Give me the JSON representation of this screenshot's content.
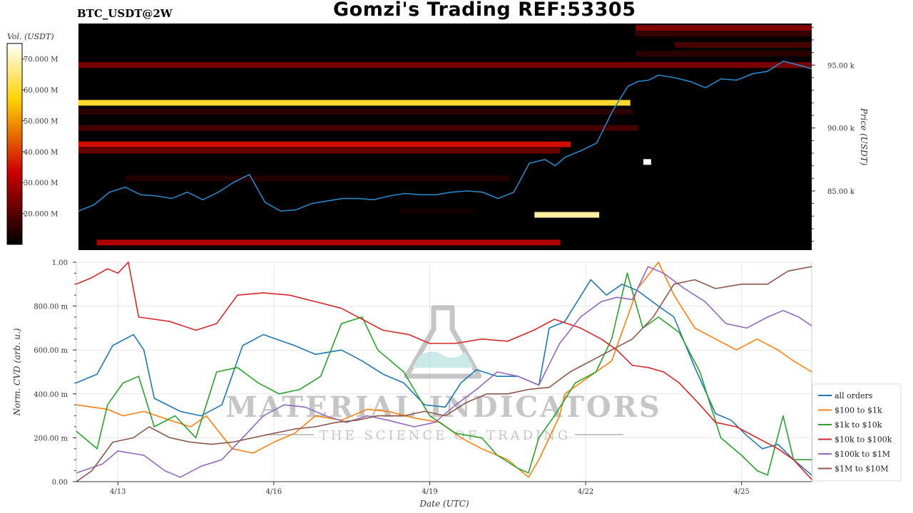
{
  "header": {
    "title": "Gomzi's Trading REF:53305",
    "symbol": "BTC_USDT@2W"
  },
  "watermark": {
    "brand": "MATERIAL INDICATORS",
    "tagline": "THE SCIENCE OF TRADING"
  },
  "chart_data": [
    {
      "type": "heatmap",
      "colorbar": {
        "label": "Vol. (USDT)",
        "range": [
          10,
          75
        ],
        "ticks": [
          "70.000 M",
          "60.000 M",
          "50.000 M",
          "40.000 M",
          "30.000 M",
          "20.000 M"
        ],
        "tick_values": [
          70,
          60,
          50,
          40,
          30,
          20
        ],
        "colormap": "hot"
      },
      "ylabel": "Price (USDT)",
      "ylim": [
        80300,
        98300
      ],
      "y_ticks": [
        "95.00 k",
        "90.00 k",
        "85.00 k"
      ],
      "y_tick_values": [
        95000,
        90000,
        85000
      ],
      "days_range": [
        -0.3,
        13.85
      ],
      "levels": [
        {
          "price": 97950,
          "from": 10.45,
          "to": 13.85,
          "vol": 25
        },
        {
          "price": 97500,
          "from": 10.45,
          "to": 13.85,
          "vol": 16
        },
        {
          "price": 96600,
          "from": 11.2,
          "to": 13.85,
          "vol": 18
        },
        {
          "price": 95900,
          "from": 10.45,
          "to": 13.85,
          "vol": 15
        },
        {
          "price": 95000,
          "from": -0.3,
          "to": 13.85,
          "vol": 24
        },
        {
          "price": 92000,
          "from": -0.3,
          "to": 10.35,
          "vol": 60
        },
        {
          "price": 91300,
          "from": -0.3,
          "to": 10.4,
          "vol": 15
        },
        {
          "price": 90000,
          "from": -0.3,
          "to": 10.5,
          "vol": 18
        },
        {
          "price": 88700,
          "from": -0.3,
          "to": 9.2,
          "vol": 35
        },
        {
          "price": 88200,
          "from": -0.3,
          "to": 9.0,
          "vol": 22
        },
        {
          "price": 87300,
          "from": 10.6,
          "to": 10.75,
          "vol": 95
        },
        {
          "price": 86000,
          "from": 0.6,
          "to": 8.0,
          "vol": 14
        },
        {
          "price": 83400,
          "from": 5.9,
          "to": 7.35,
          "vol": 12
        },
        {
          "price": 83100,
          "from": 8.5,
          "to": 9.75,
          "vol": 68
        },
        {
          "price": 80900,
          "from": 0.05,
          "to": 9.0,
          "vol": 30
        }
      ],
      "price_series": {
        "name": "price",
        "days": [
          -0.3,
          0.0,
          0.3,
          0.6,
          0.9,
          1.2,
          1.5,
          1.8,
          2.1,
          2.4,
          2.7,
          3.0,
          3.3,
          3.6,
          3.9,
          4.2,
          4.5,
          4.8,
          5.1,
          5.4,
          5.7,
          6.0,
          6.3,
          6.6,
          6.9,
          7.2,
          7.5,
          7.8,
          8.1,
          8.4,
          8.7,
          8.9,
          9.1,
          9.4,
          9.7,
          10.0,
          10.3,
          10.5,
          10.7,
          10.9,
          11.2,
          11.5,
          11.8,
          12.1,
          12.4,
          12.7,
          13.0,
          13.3,
          13.6,
          13.85
        ],
        "values": [
          83400,
          83900,
          84900,
          85300,
          84700,
          84600,
          84400,
          84900,
          84300,
          84900,
          85700,
          86300,
          84100,
          83400,
          83500,
          84000,
          84200,
          84400,
          84400,
          84300,
          84600,
          84800,
          84700,
          84700,
          84900,
          85000,
          84900,
          84400,
          84900,
          87200,
          87500,
          87000,
          87700,
          88200,
          88800,
          91300,
          93300,
          93700,
          93800,
          94200,
          94000,
          93700,
          93200,
          93900,
          93800,
          94300,
          94500,
          95300,
          95000,
          94700
        ]
      }
    },
    {
      "type": "line",
      "xlabel": "Date (UTC)",
      "ylabel": "Norm. CVD (arb. u.)",
      "ylim": [
        0,
        1
      ],
      "xlim": [
        -0.3,
        13.85
      ],
      "y_ticks": [
        "1.00",
        "800.00 m",
        "600.00 m",
        "400.00 m",
        "200.00 m",
        "0.00"
      ],
      "y_tick_values": [
        1.0,
        0.8,
        0.6,
        0.4,
        0.2,
        0.0
      ],
      "x_ticks": [
        "4/13",
        "4/16",
        "4/19",
        "4/22",
        "4/25"
      ],
      "x_tick_days": [
        0.5,
        3.5,
        6.5,
        9.5,
        12.5
      ],
      "legend_position": "bottom-right",
      "series": [
        {
          "name": "all orders",
          "color": "#1f77b4",
          "x": [
            -0.3,
            0.1,
            0.4,
            0.8,
            1.0,
            1.2,
            1.7,
            2.1,
            2.5,
            2.9,
            3.3,
            3.9,
            4.3,
            4.8,
            5.2,
            5.6,
            6.0,
            6.4,
            6.8,
            7.1,
            7.4,
            7.8,
            8.2,
            8.6,
            8.8,
            9.1,
            9.6,
            9.9,
            10.2,
            10.5,
            10.9,
            11.2,
            11.6,
            12.0,
            12.3,
            12.6,
            12.9,
            13.2,
            13.5,
            13.85
          ],
          "y": [
            0.45,
            0.49,
            0.62,
            0.67,
            0.6,
            0.38,
            0.32,
            0.3,
            0.35,
            0.62,
            0.67,
            0.62,
            0.58,
            0.6,
            0.55,
            0.49,
            0.45,
            0.35,
            0.34,
            0.45,
            0.51,
            0.48,
            0.48,
            0.44,
            0.7,
            0.73,
            0.92,
            0.85,
            0.9,
            0.87,
            0.8,
            0.75,
            0.52,
            0.31,
            0.28,
            0.21,
            0.15,
            0.17,
            0.1,
            0.03
          ]
        },
        {
          "name": "$100 to $1k",
          "color": "#ff7f0e",
          "x": [
            -0.3,
            0.3,
            0.6,
            1.0,
            1.5,
            1.9,
            2.2,
            2.7,
            3.1,
            3.5,
            3.9,
            4.3,
            4.8,
            5.3,
            5.7,
            6.2,
            6.7,
            7.1,
            7.5,
            8.0,
            8.4,
            8.6,
            8.8,
            9.0,
            9.1,
            9.4,
            10.0,
            10.5,
            10.9,
            11.2,
            11.6,
            12.0,
            12.4,
            12.8,
            13.2,
            13.5,
            13.85
          ],
          "y": [
            0.35,
            0.33,
            0.3,
            0.32,
            0.28,
            0.25,
            0.3,
            0.15,
            0.13,
            0.18,
            0.22,
            0.3,
            0.28,
            0.33,
            0.32,
            0.29,
            0.27,
            0.2,
            0.15,
            0.1,
            0.02,
            0.1,
            0.2,
            0.3,
            0.4,
            0.45,
            0.55,
            0.88,
            1.0,
            0.85,
            0.7,
            0.65,
            0.6,
            0.65,
            0.6,
            0.55,
            0.5
          ]
        },
        {
          "name": "$1k to $10k",
          "color": "#2ca02c",
          "x": [
            -0.3,
            0.1,
            0.3,
            0.6,
            0.9,
            1.2,
            1.6,
            2.0,
            2.4,
            2.8,
            3.2,
            3.6,
            4.0,
            4.4,
            4.8,
            5.2,
            5.5,
            6.0,
            6.5,
            7.0,
            7.5,
            7.8,
            8.2,
            8.4,
            8.6,
            8.9,
            9.3,
            9.7,
            10.0,
            10.3,
            10.6,
            10.9,
            11.3,
            11.7,
            12.1,
            12.5,
            12.8,
            13.0,
            13.3,
            13.5,
            13.85
          ],
          "y": [
            0.23,
            0.15,
            0.35,
            0.45,
            0.48,
            0.25,
            0.3,
            0.2,
            0.5,
            0.52,
            0.45,
            0.4,
            0.42,
            0.48,
            0.72,
            0.75,
            0.6,
            0.5,
            0.3,
            0.22,
            0.2,
            0.12,
            0.06,
            0.04,
            0.2,
            0.3,
            0.45,
            0.5,
            0.65,
            0.95,
            0.7,
            0.75,
            0.68,
            0.5,
            0.2,
            0.12,
            0.05,
            0.03,
            0.3,
            0.1,
            0.1
          ]
        },
        {
          "name": "$10k to $100k",
          "color": "#d62728",
          "x": [
            -0.3,
            0.0,
            0.3,
            0.5,
            0.7,
            0.9,
            1.5,
            2.0,
            2.4,
            2.8,
            3.3,
            3.8,
            4.3,
            4.8,
            5.2,
            5.6,
            6.1,
            6.5,
            7.0,
            7.5,
            8.0,
            8.5,
            8.9,
            9.4,
            9.8,
            10.1,
            10.4,
            10.7,
            11.0,
            11.3,
            11.7,
            12.0,
            12.4,
            12.8,
            13.2,
            13.5,
            13.85
          ],
          "y": [
            0.9,
            0.93,
            0.97,
            0.95,
            1.0,
            0.75,
            0.73,
            0.69,
            0.72,
            0.85,
            0.86,
            0.85,
            0.82,
            0.79,
            0.74,
            0.69,
            0.67,
            0.63,
            0.63,
            0.65,
            0.64,
            0.69,
            0.74,
            0.7,
            0.65,
            0.6,
            0.53,
            0.52,
            0.5,
            0.45,
            0.35,
            0.27,
            0.25,
            0.2,
            0.15,
            0.1,
            0.01
          ]
        },
        {
          "name": "$100k to $1M",
          "color": "#9467bd",
          "x": [
            -0.3,
            0.2,
            0.5,
            1.0,
            1.4,
            1.7,
            2.1,
            2.5,
            2.9,
            3.3,
            3.7,
            4.1,
            4.5,
            4.9,
            5.3,
            5.7,
            6.2,
            6.6,
            7.0,
            7.4,
            7.8,
            8.2,
            8.6,
            9.0,
            9.4,
            9.8,
            10.1,
            10.4,
            10.7,
            11.0,
            11.4,
            11.8,
            12.2,
            12.6,
            13.0,
            13.3,
            13.6,
            13.85
          ],
          "y": [
            0.04,
            0.08,
            0.14,
            0.12,
            0.05,
            0.02,
            0.07,
            0.1,
            0.2,
            0.3,
            0.35,
            0.34,
            0.3,
            0.27,
            0.3,
            0.28,
            0.25,
            0.27,
            0.35,
            0.42,
            0.5,
            0.48,
            0.44,
            0.63,
            0.75,
            0.82,
            0.84,
            0.83,
            0.98,
            0.95,
            0.88,
            0.82,
            0.72,
            0.7,
            0.75,
            0.78,
            0.75,
            0.71
          ]
        },
        {
          "name": "$1M to $10M",
          "color": "#8c564b",
          "x": [
            -0.3,
            0.0,
            0.4,
            0.8,
            1.1,
            1.5,
            1.9,
            2.3,
            2.7,
            3.1,
            3.5,
            3.9,
            4.3,
            4.7,
            5.1,
            5.5,
            6.0,
            6.4,
            6.8,
            7.2,
            7.6,
            8.0,
            8.4,
            8.8,
            9.2,
            9.6,
            10.0,
            10.4,
            10.8,
            11.2,
            11.6,
            12.0,
            12.5,
            13.0,
            13.4,
            13.85
          ],
          "y": [
            0.0,
            0.05,
            0.18,
            0.2,
            0.25,
            0.2,
            0.18,
            0.17,
            0.18,
            0.2,
            0.22,
            0.24,
            0.25,
            0.27,
            0.28,
            0.3,
            0.3,
            0.32,
            0.3,
            0.36,
            0.4,
            0.4,
            0.42,
            0.43,
            0.5,
            0.55,
            0.6,
            0.65,
            0.75,
            0.9,
            0.92,
            0.88,
            0.9,
            0.9,
            0.96,
            0.98
          ]
        }
      ]
    }
  ]
}
